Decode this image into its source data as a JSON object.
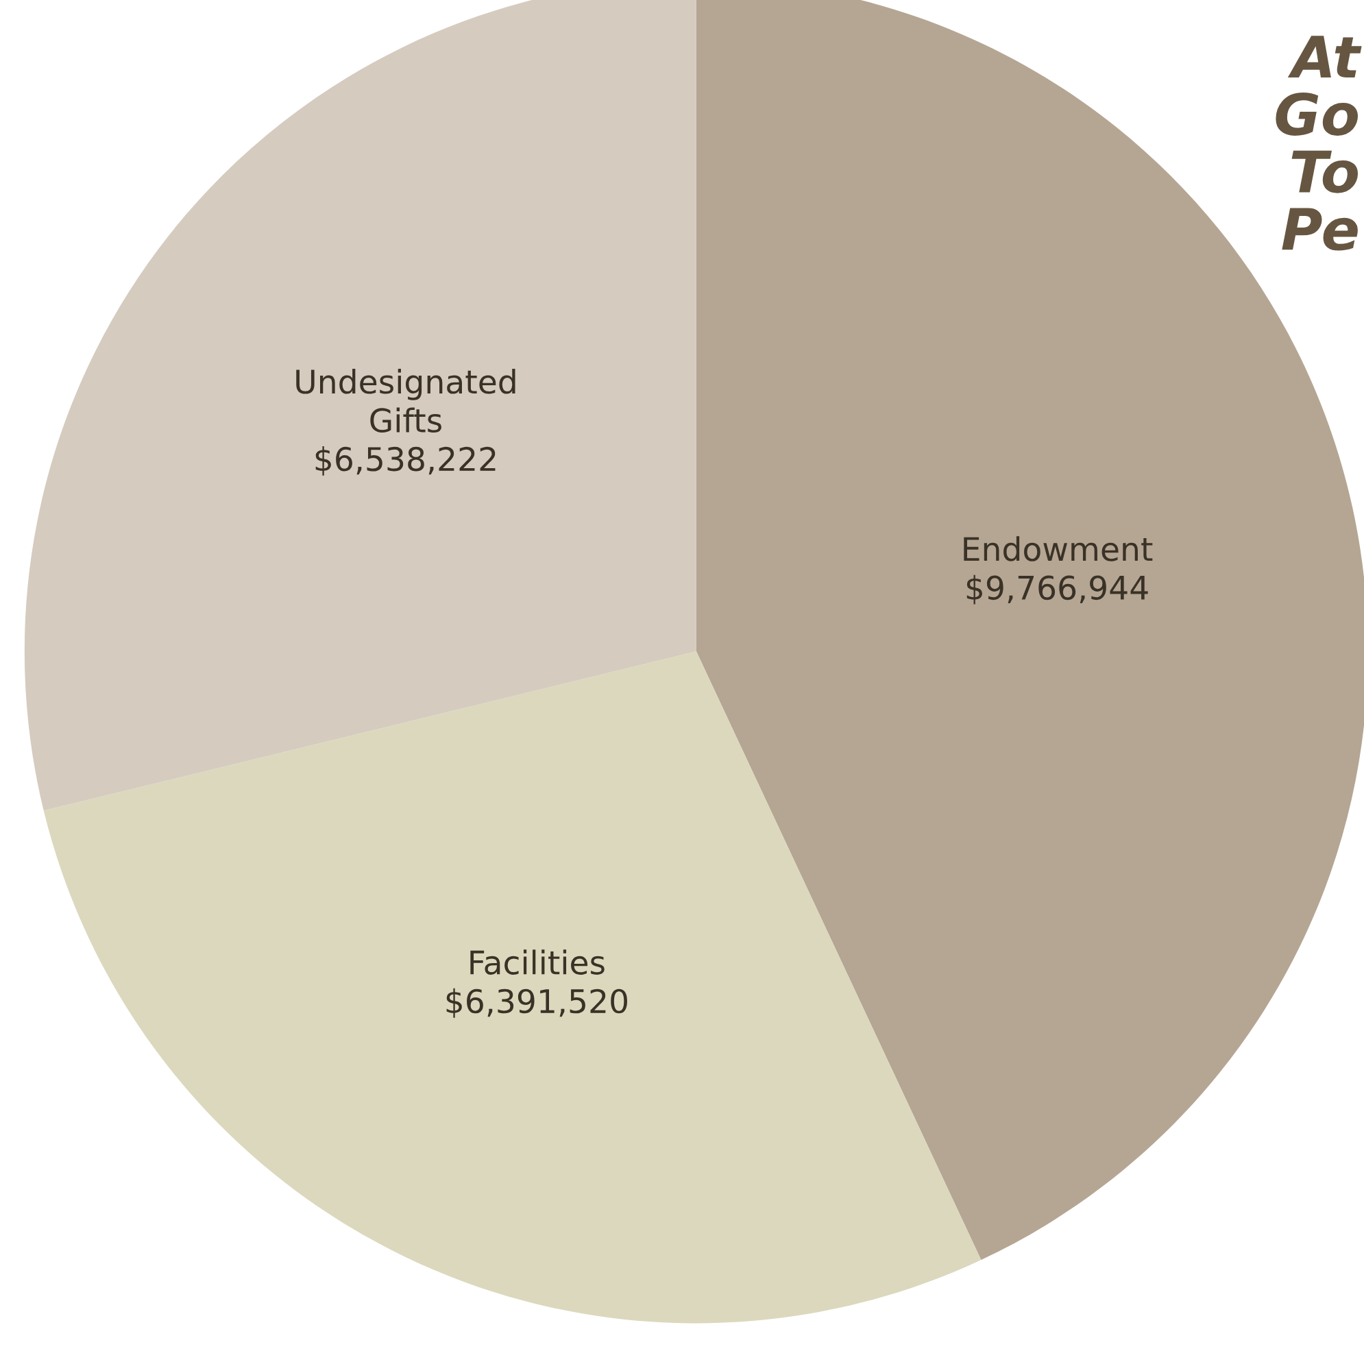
{
  "chart_data": {
    "type": "pie",
    "title": "At\nGo\nTo\nPe",
    "categories": [
      "Endowment",
      "Facilities",
      "Undesignated\nGifts"
    ],
    "values": [
      9766944,
      6391520,
      6538222
    ],
    "colors": [
      "#b5a693",
      "#dcd8bd",
      "#d5cbbf"
    ],
    "value_labels": [
      "$9,766,944",
      "$6,391,520",
      "$6,538,222"
    ]
  }
}
